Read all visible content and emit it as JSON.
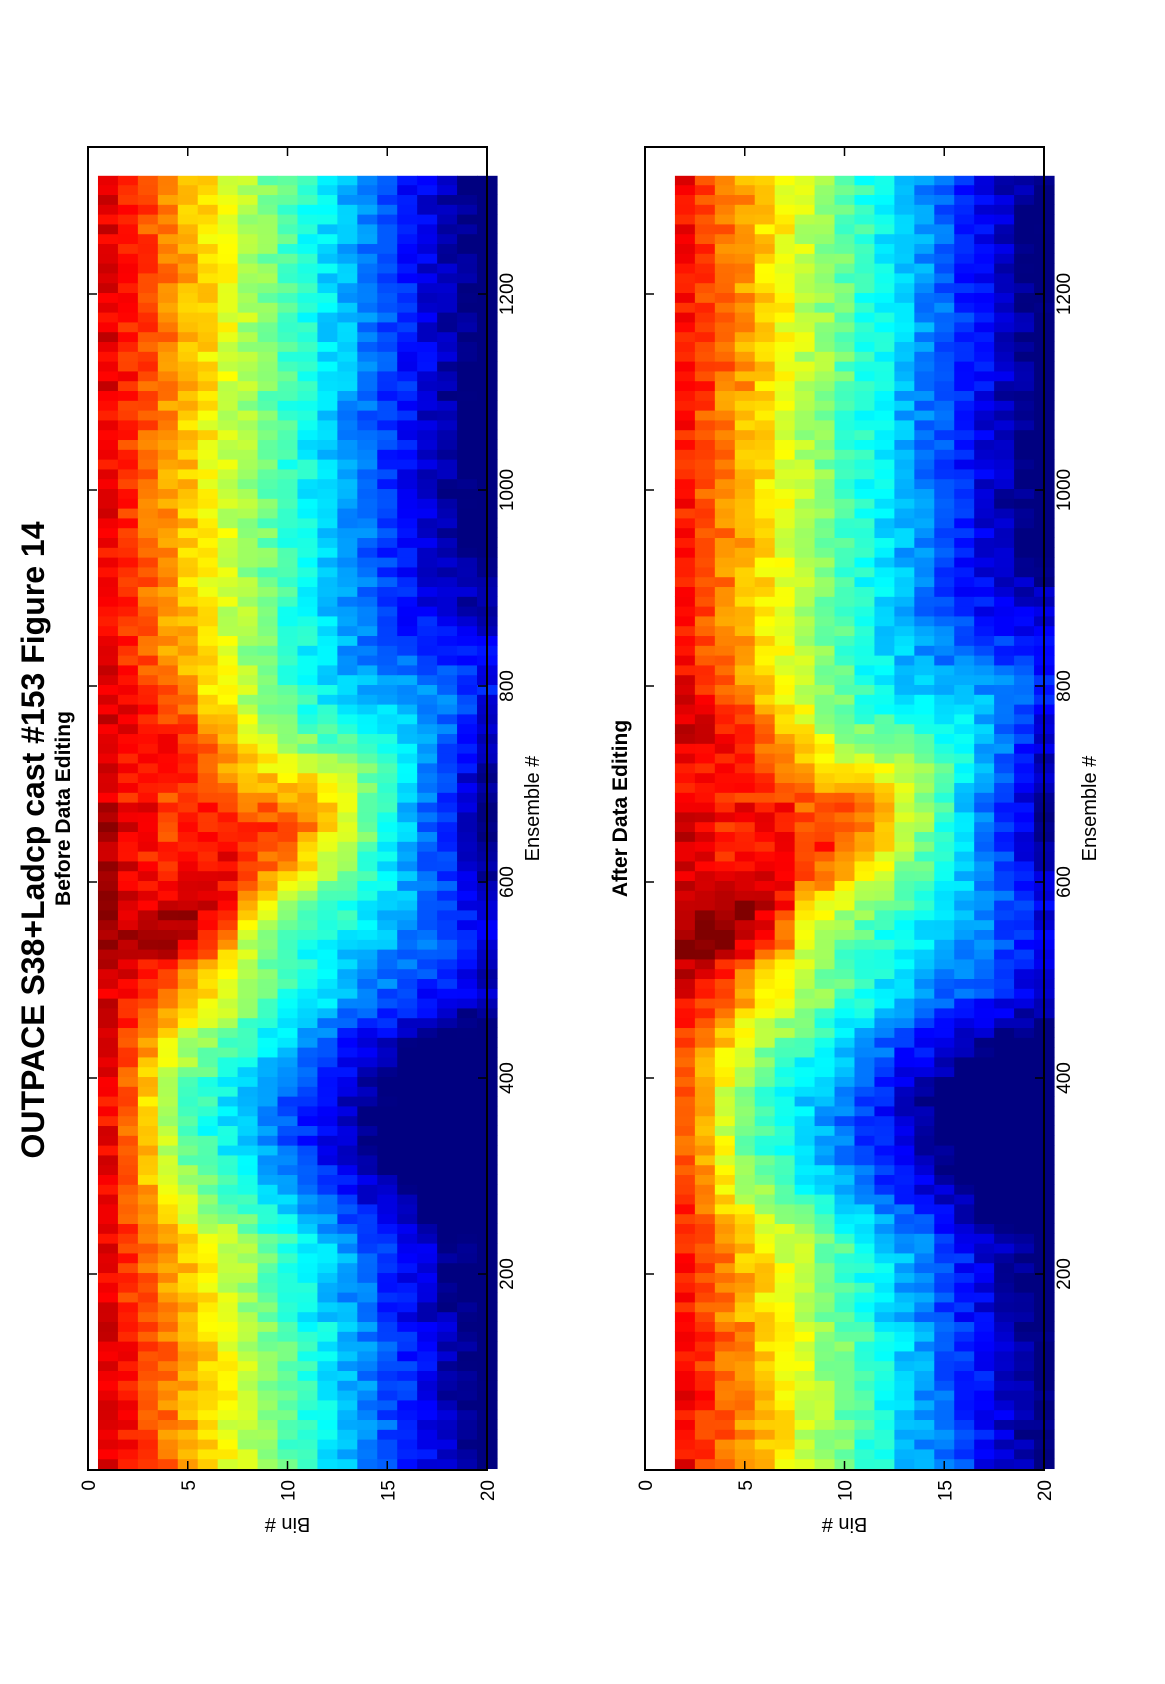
{
  "figure": {
    "title": "OUTPACE S38+Ladcp cast #153  Figure 14"
  },
  "chart_data": [
    {
      "type": "heatmap",
      "title": "Before Data Editing",
      "xlabel": "Ensemble #",
      "ylabel": "Bin #",
      "xlim": [
        0,
        1350
      ],
      "ylim": [
        0,
        20
      ],
      "y_direction": "reversed",
      "xticks": [
        200,
        400,
        600,
        800,
        1000,
        1200
      ],
      "yticks": [
        0,
        5,
        10,
        15,
        20
      ],
      "colormap": "jet",
      "data_coverage": {
        "x_range": [
          1,
          1320
        ],
        "bins": [
          1,
          20
        ]
      },
      "grid": false,
      "colorbar": false
    },
    {
      "type": "heatmap",
      "title": "After Data Editing",
      "xlabel": "Ensemble #",
      "ylabel": "Bin #",
      "xlim": [
        0,
        1350
      ],
      "ylim": [
        0,
        20
      ],
      "y_direction": "reversed",
      "xticks": [
        200,
        400,
        600,
        800,
        1000,
        1200
      ],
      "yticks": [
        0,
        5,
        10,
        15,
        20
      ],
      "colormap": "jet",
      "data_coverage": {
        "x_range": [
          1,
          1320
        ],
        "bins": [
          2,
          20
        ]
      },
      "grid": false,
      "colorbar": false
    }
  ]
}
